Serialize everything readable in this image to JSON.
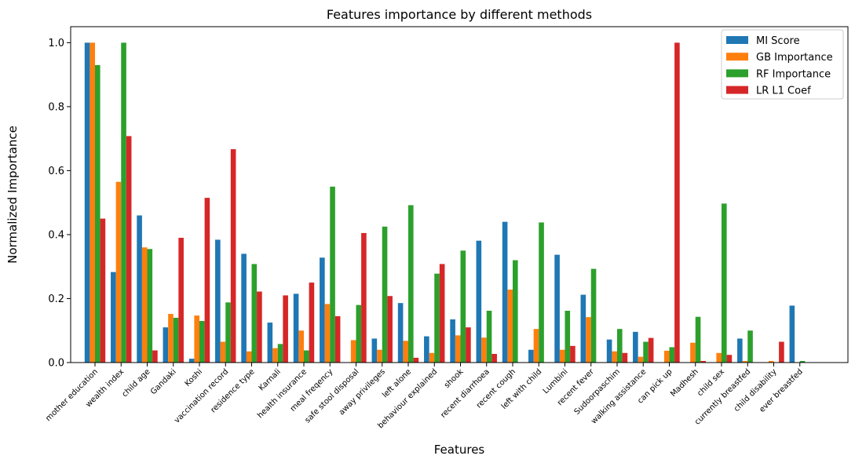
{
  "chart_data": {
    "type": "bar",
    "title": "Features importance by different methods",
    "xlabel": "Features",
    "ylabel": "Normalized Importance",
    "ylim": [
      0,
      1.05
    ],
    "yticks": [
      "0.0",
      "0.2",
      "0.4",
      "0.6",
      "0.8",
      "1.0"
    ],
    "legend_position": "top-right",
    "categories": [
      "mother education",
      "wealth index",
      "child age",
      "Gandaki",
      "Koshi",
      "vaccination record",
      "residence type",
      "Karnali",
      "health insurance",
      "meal freqency",
      "safe stool disposal",
      "away privileges",
      "left alone",
      "behaviour explained",
      "shook",
      "recent diarrhoea",
      "recent cough",
      "left with child",
      "Lumbini",
      "recent fever",
      "Sudoorpaschim",
      "walking assistance",
      "can pick up",
      "Madhesh",
      "child sex",
      "currently breastfed",
      "child disability",
      "ever breastfed"
    ],
    "series": [
      {
        "name": "MI Score",
        "color": "#1f77b4",
        "values": [
          1.0,
          0.283,
          0.46,
          0.11,
          0.012,
          0.384,
          0.34,
          0.125,
          0.215,
          0.328,
          0.0,
          0.075,
          0.186,
          0.082,
          0.135,
          0.381,
          0.44,
          0.04,
          0.337,
          0.212,
          0.072,
          0.096,
          0.0,
          0.0,
          0.0,
          0.075,
          0.0,
          0.178
        ]
      },
      {
        "name": "GB Importance",
        "color": "#ff7f0e",
        "values": [
          1.0,
          0.565,
          0.36,
          0.152,
          0.147,
          0.065,
          0.035,
          0.045,
          0.1,
          0.183,
          0.07,
          0.04,
          0.068,
          0.03,
          0.085,
          0.078,
          0.228,
          0.105,
          0.04,
          0.142,
          0.035,
          0.018,
          0.037,
          0.062,
          0.03,
          0.005,
          0.005,
          0.0
        ]
      },
      {
        "name": "RF Importance",
        "color": "#2ca02c",
        "values": [
          0.93,
          1.0,
          0.355,
          0.14,
          0.13,
          0.188,
          0.308,
          0.058,
          0.038,
          0.55,
          0.18,
          0.425,
          0.492,
          0.278,
          0.35,
          0.162,
          0.32,
          0.438,
          0.162,
          0.293,
          0.105,
          0.065,
          0.048,
          0.143,
          0.497,
          0.1,
          0.0,
          0.005
        ]
      },
      {
        "name": "LR L1 Coef",
        "color": "#d62728",
        "values": [
          0.45,
          0.708,
          0.038,
          0.39,
          0.515,
          0.667,
          0.222,
          0.21,
          0.25,
          0.145,
          0.405,
          0.208,
          0.015,
          0.308,
          0.11,
          0.027,
          0.0,
          0.0,
          0.052,
          0.0,
          0.03,
          0.077,
          1.0,
          0.005,
          0.024,
          0.0,
          0.065,
          0.0
        ]
      }
    ]
  }
}
